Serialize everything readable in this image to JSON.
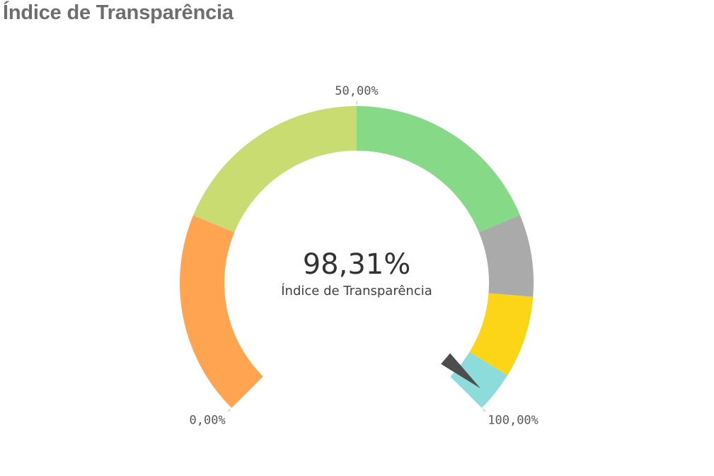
{
  "header": {
    "title": "Índice de Transparência"
  },
  "chart_data": {
    "type": "gauge",
    "title": "Índice de Transparência",
    "value": 98.31,
    "value_label": "98,31%",
    "measure_label": "Índice de Transparência",
    "min": 0,
    "max": 100,
    "ticks": [
      {
        "value": 0,
        "label": "0,00%"
      },
      {
        "value": 50,
        "label": "50,00%"
      },
      {
        "value": 100,
        "label": "100,00%"
      }
    ],
    "segments": [
      {
        "from": 0,
        "to": 25,
        "color": "#ffa552"
      },
      {
        "from": 25,
        "to": 50,
        "color": "#c9dc72"
      },
      {
        "from": 50,
        "to": 75,
        "color": "#86d986"
      },
      {
        "from": 75,
        "to": 85,
        "color": "#aaaaaa"
      },
      {
        "from": 85,
        "to": 95,
        "color": "#fcd517"
      },
      {
        "from": 95,
        "to": 100,
        "color": "#8cdcdc"
      }
    ],
    "needle_color": "#4d4d4d"
  }
}
